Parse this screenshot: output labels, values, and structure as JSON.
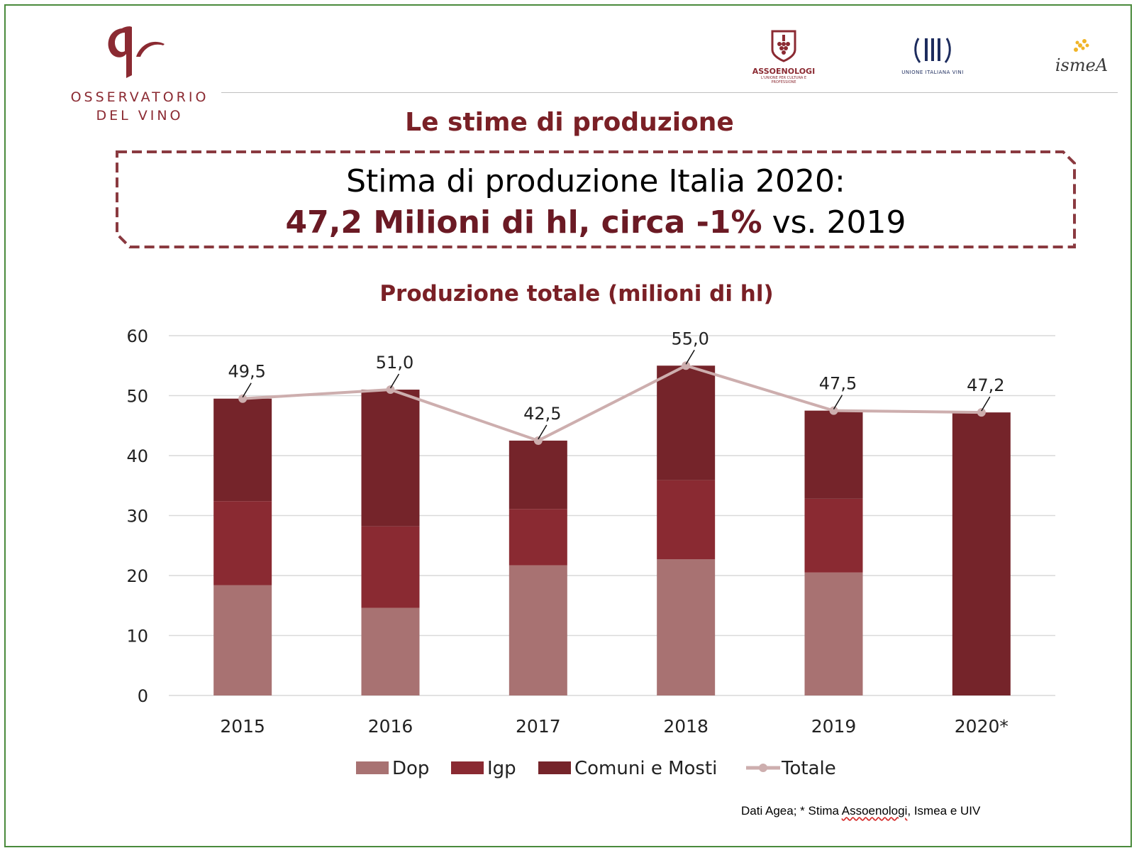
{
  "header": {
    "logo_line1": "OSSERVATORIO",
    "logo_line2": "DEL VINO",
    "partner_logos": [
      {
        "name": "ASSOENOLOGI",
        "sub": "L'UNIONE PER CULTURA E PROFESSIONE"
      },
      {
        "name": "UNIONE ITALIANA VINI"
      },
      {
        "name": "ismeA"
      }
    ]
  },
  "slide_title": "Le stime di produzione",
  "headline": {
    "line1": "Stima di produzione Italia 2020:",
    "line2_strong": "47,2 Milioni di hl, circa -1%",
    "line2_rest": " vs. 2019"
  },
  "colors": {
    "brand": "#8b2a32",
    "dop": "#a87272",
    "igp": "#8a2a32",
    "comuni": "#75242a",
    "totale": "#cdaeae",
    "frame": "#4a8a3c"
  },
  "chart_data": {
    "type": "bar",
    "stacked": true,
    "title": "Produzione totale (milioni di hl)",
    "categories": [
      "2015",
      "2016",
      "2017",
      "2018",
      "2019",
      "2020*"
    ],
    "series": [
      {
        "name": "Dop",
        "values": [
          18.4,
          14.6,
          21.7,
          22.7,
          20.5,
          0
        ]
      },
      {
        "name": "Igp",
        "values": [
          14.0,
          13.6,
          9.4,
          13.2,
          12.3,
          0
        ]
      },
      {
        "name": "Comuni e Mosti",
        "values": [
          17.1,
          22.8,
          11.4,
          19.1,
          14.7,
          47.2
        ]
      }
    ],
    "line_series": {
      "name": "Totale",
      "values": [
        49.5,
        51.0,
        42.5,
        55.0,
        47.5,
        47.2
      ]
    },
    "data_labels": [
      "49,5",
      "51,0",
      "42,5",
      "55,0",
      "47,5",
      "47,2"
    ],
    "y_ticks": [
      "0",
      "10",
      "20",
      "30",
      "40",
      "50",
      "60"
    ],
    "ylim": [
      0,
      60
    ],
    "grid": true,
    "legend_position": "bottom"
  },
  "source_prefix": "Dati Agea; * Stima ",
  "source_underlined": "Assoenologi",
  "source_suffix": ", Ismea e UIV"
}
